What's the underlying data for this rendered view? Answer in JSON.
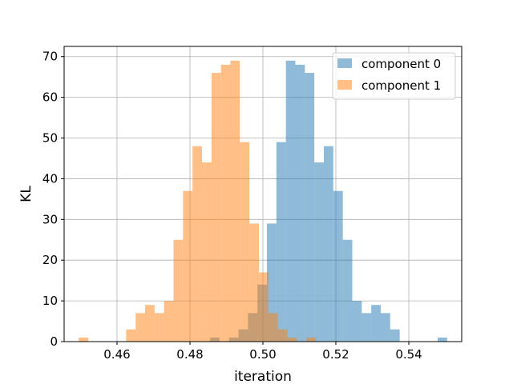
{
  "chart_data": {
    "type": "bar",
    "title": "",
    "xlabel": "iteration",
    "ylabel": "KL",
    "xlim": [
      0.4455,
      0.5545
    ],
    "ylim": [
      0,
      72.5
    ],
    "xticks": [
      "0.46",
      "0.48",
      "0.50",
      "0.52",
      "0.54"
    ],
    "xtick_values": [
      0.46,
      0.48,
      0.5,
      0.52,
      0.54
    ],
    "yticks": [
      "0",
      "10",
      "20",
      "30",
      "40",
      "50",
      "60",
      "70"
    ],
    "ytick_values": [
      0,
      10,
      20,
      30,
      40,
      50,
      60,
      70
    ],
    "grid": true,
    "legend": "top-right",
    "series": [
      {
        "name": "component 0",
        "color": "#1f77b4",
        "opacity": 0.5,
        "bins": [
          {
            "x0": 0.4855,
            "x1": 0.4881,
            "y": 1
          },
          {
            "x0": 0.4881,
            "x1": 0.4907,
            "y": 0
          },
          {
            "x0": 0.4907,
            "x1": 0.4933,
            "y": 1
          },
          {
            "x0": 0.4933,
            "x1": 0.4959,
            "y": 3
          },
          {
            "x0": 0.4959,
            "x1": 0.4985,
            "y": 7
          },
          {
            "x0": 0.4985,
            "x1": 0.5011,
            "y": 14
          },
          {
            "x0": 0.5011,
            "x1": 0.5037,
            "y": 29
          },
          {
            "x0": 0.5037,
            "x1": 0.5063,
            "y": 49
          },
          {
            "x0": 0.5063,
            "x1": 0.5089,
            "y": 69
          },
          {
            "x0": 0.5089,
            "x1": 0.5115,
            "y": 68
          },
          {
            "x0": 0.5115,
            "x1": 0.5141,
            "y": 66
          },
          {
            "x0": 0.5141,
            "x1": 0.5167,
            "y": 44
          },
          {
            "x0": 0.5167,
            "x1": 0.5193,
            "y": 48
          },
          {
            "x0": 0.5193,
            "x1": 0.5219,
            "y": 37
          },
          {
            "x0": 0.5219,
            "x1": 0.5245,
            "y": 25
          },
          {
            "x0": 0.5245,
            "x1": 0.5271,
            "y": 10
          },
          {
            "x0": 0.5271,
            "x1": 0.5297,
            "y": 7
          },
          {
            "x0": 0.5297,
            "x1": 0.5323,
            "y": 9
          },
          {
            "x0": 0.5323,
            "x1": 0.5349,
            "y": 7
          },
          {
            "x0": 0.5349,
            "x1": 0.5375,
            "y": 3
          },
          {
            "x0": 0.5375,
            "x1": 0.5401,
            "y": 0
          },
          {
            "x0": 0.5401,
            "x1": 0.5427,
            "y": 0
          },
          {
            "x0": 0.5427,
            "x1": 0.5453,
            "y": 0
          },
          {
            "x0": 0.5453,
            "x1": 0.5479,
            "y": 0
          },
          {
            "x0": 0.5479,
            "x1": 0.5505,
            "y": 1
          }
        ]
      },
      {
        "name": "component 1",
        "color": "#ff7f0e",
        "opacity": 0.5,
        "bins": [
          {
            "x0": 0.4495,
            "x1": 0.4521,
            "y": 1
          },
          {
            "x0": 0.4521,
            "x1": 0.4547,
            "y": 0
          },
          {
            "x0": 0.4547,
            "x1": 0.4573,
            "y": 0
          },
          {
            "x0": 0.4573,
            "x1": 0.4599,
            "y": 0
          },
          {
            "x0": 0.4599,
            "x1": 0.4625,
            "y": 0
          },
          {
            "x0": 0.4625,
            "x1": 0.4651,
            "y": 3
          },
          {
            "x0": 0.4651,
            "x1": 0.4677,
            "y": 7
          },
          {
            "x0": 0.4677,
            "x1": 0.4703,
            "y": 9
          },
          {
            "x0": 0.4703,
            "x1": 0.4729,
            "y": 7
          },
          {
            "x0": 0.4729,
            "x1": 0.4755,
            "y": 10
          },
          {
            "x0": 0.4755,
            "x1": 0.4781,
            "y": 25
          },
          {
            "x0": 0.4781,
            "x1": 0.4807,
            "y": 37
          },
          {
            "x0": 0.4807,
            "x1": 0.4833,
            "y": 48
          },
          {
            "x0": 0.4833,
            "x1": 0.4859,
            "y": 44
          },
          {
            "x0": 0.4859,
            "x1": 0.4885,
            "y": 66
          },
          {
            "x0": 0.4885,
            "x1": 0.4911,
            "y": 68
          },
          {
            "x0": 0.4911,
            "x1": 0.4937,
            "y": 69
          },
          {
            "x0": 0.4937,
            "x1": 0.4963,
            "y": 49
          },
          {
            "x0": 0.4963,
            "x1": 0.4989,
            "y": 29
          },
          {
            "x0": 0.4989,
            "x1": 0.5015,
            "y": 17
          },
          {
            "x0": 0.5015,
            "x1": 0.5041,
            "y": 7
          },
          {
            "x0": 0.5041,
            "x1": 0.5067,
            "y": 3
          },
          {
            "x0": 0.5067,
            "x1": 0.5093,
            "y": 1
          },
          {
            "x0": 0.5093,
            "x1": 0.5119,
            "y": 0
          },
          {
            "x0": 0.5119,
            "x1": 0.5145,
            "y": 1
          }
        ]
      }
    ]
  }
}
